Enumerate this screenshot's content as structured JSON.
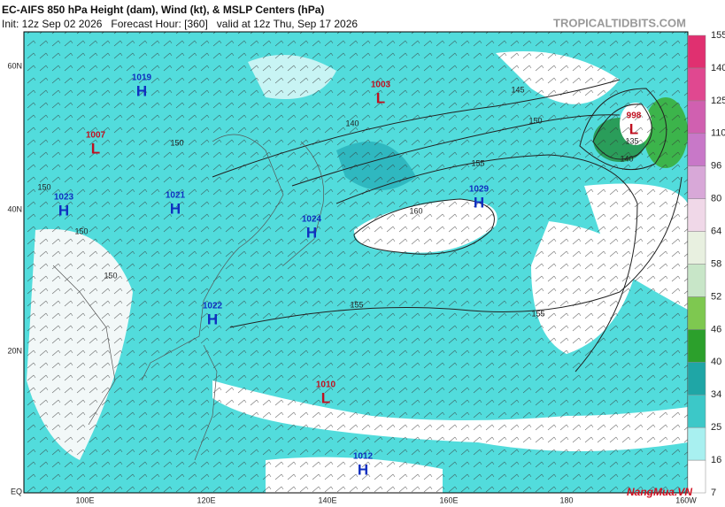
{
  "header": {
    "title": "EC-AIFS 850 hPa Height (dam), Wind (kt), & MSLP Centers (hPa)",
    "subtitle": "Init: 12z Sep 02 2026   Forecast Hour: [360]   valid at 12z Thu, Sep 17 2026",
    "site": "TROPICALTIDBITS.COM"
  },
  "axes": {
    "latitudes": [
      "60N",
      "40N",
      "20N",
      "EQ"
    ],
    "longitudes": [
      "100E",
      "120E",
      "140E",
      "160E",
      "180",
      "160W"
    ]
  },
  "centers": [
    {
      "letter": "H",
      "value": 1019
    },
    {
      "letter": "L",
      "value": 1007
    },
    {
      "letter": "H",
      "value": 1023
    },
    {
      "letter": "H",
      "value": 1021
    },
    {
      "letter": "H",
      "value": 1024
    },
    {
      "letter": "H",
      "value": 1022
    },
    {
      "letter": "L",
      "value": 1003
    },
    {
      "letter": "H",
      "value": 1029
    },
    {
      "letter": "L",
      "value": 998
    },
    {
      "letter": "L",
      "value": 1010
    },
    {
      "letter": "H",
      "value": 1012
    }
  ],
  "contour_labels": [
    145,
    150,
    155,
    160,
    155,
    155,
    140,
    135,
    140,
    150,
    150,
    150,
    150
  ],
  "colorbar": {
    "ticks": [
      7,
      16,
      25,
      34,
      40,
      46,
      52,
      58,
      64,
      80,
      96,
      110,
      125,
      140,
      155
    ]
  },
  "watermark": "NangMua.VN"
}
